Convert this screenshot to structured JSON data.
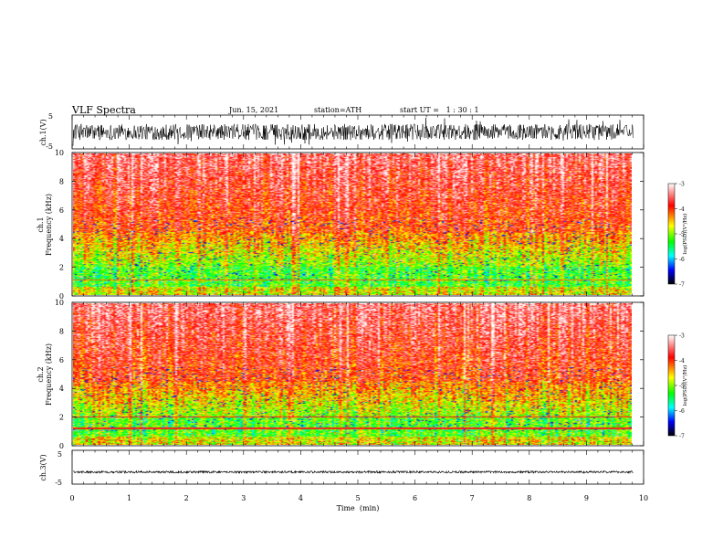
{
  "header": {
    "title": "VLF Spectra",
    "date": "Jun. 15, 2021",
    "station": "station=ATH",
    "start": "start UT =   1 : 30 : 1"
  },
  "colorbar": {
    "label": "log(PSD)(V²/Hz)",
    "ticks": [
      "-3",
      "-4",
      "-5",
      "-6",
      "-7"
    ],
    "colors": [
      "#ffffff",
      "#ff0000",
      "#ffff00",
      "#00ff00",
      "#00ffff",
      "#0000ff",
      "#000000"
    ]
  },
  "chart_data": [
    {
      "type": "line",
      "name": "ch.1 waveform",
      "ylabel": "ch.1(V)",
      "ylim": [
        -5,
        5
      ],
      "yticks": [
        "5",
        "-5"
      ],
      "xlim": [
        0,
        10
      ],
      "description_band": [
        -2.5,
        2.5
      ]
    },
    {
      "type": "heatmap",
      "name": "ch.1 spectrogram",
      "ylabel": "ch.1\nFrequency (kHz)",
      "ylim": [
        0,
        10
      ],
      "yticks": [
        "10",
        "8",
        "6",
        "4",
        "2",
        "0"
      ],
      "xlim": [
        0,
        10
      ],
      "value_range": [
        -7,
        -3
      ]
    },
    {
      "type": "heatmap",
      "name": "ch.2 spectrogram",
      "ylabel": "ch.2\nFrequency (kHz)",
      "ylim": [
        0,
        10
      ],
      "yticks": [
        "10",
        "8",
        "6",
        "4",
        "2",
        "0"
      ],
      "xlim": [
        0,
        10
      ],
      "value_range": [
        -7,
        -3
      ]
    },
    {
      "type": "line",
      "name": "ch.3 waveform",
      "ylabel": "ch.3(V)",
      "ylim": [
        -5,
        5
      ],
      "yticks": [
        "5",
        "-5"
      ],
      "xlim": [
        0,
        10
      ],
      "trace_level": -1.5
    }
  ],
  "xaxis": {
    "label": "Time  (min)",
    "ticks": [
      "0",
      "1",
      "2",
      "3",
      "4",
      "5",
      "6",
      "7",
      "8",
      "9",
      "10"
    ],
    "data_end": 9.82
  }
}
